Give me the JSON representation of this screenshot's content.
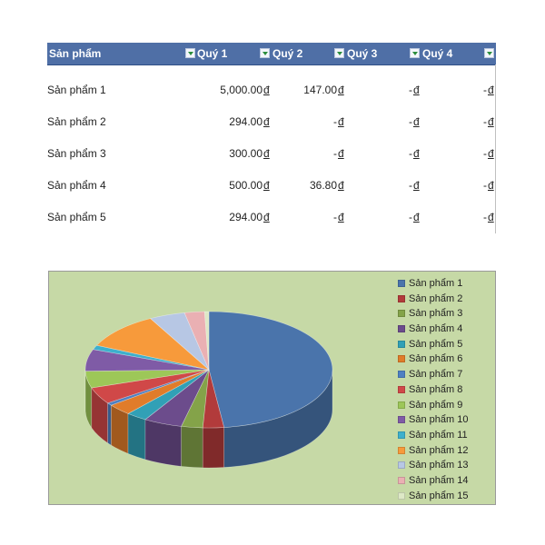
{
  "table": {
    "headers": [
      "Sản phẩm",
      "Quý 1",
      "Quý 2",
      "Quý 3",
      "Quý 4"
    ],
    "currency_symbol": "đ",
    "rows": [
      {
        "name": "Sản phẩm 1",
        "q1": "5,000.00",
        "q2": "147.00",
        "q3": "-",
        "q4": "-"
      },
      {
        "name": "Sản phẩm 2",
        "q1": "294.00",
        "q2": "-",
        "q3": "-",
        "q4": "-"
      },
      {
        "name": "Sản phẩm 3",
        "q1": "300.00",
        "q2": "-",
        "q3": "-",
        "q4": "-"
      },
      {
        "name": "Sản phẩm 4",
        "q1": "500.00",
        "q2": "36.80",
        "q3": "-",
        "q4": "-"
      },
      {
        "name": "Sản phẩm 5",
        "q1": "294.00",
        "q2": "-",
        "q3": "-",
        "q4": "-"
      }
    ],
    "colors": {
      "header_bg": "#4f6fa6",
      "header_text": "#ffffff",
      "filter_arrow": "#2a8d3c"
    }
  },
  "chart_data": {
    "type": "pie",
    "style": "3d",
    "background": "#c6d9a6",
    "legend_position": "right",
    "slices": [
      {
        "label": "Sản phẩm 1",
        "value": 5147,
        "color": "#4a74ab"
      },
      {
        "label": "Sản phẩm 2",
        "value": 294,
        "color": "#b23b3b"
      },
      {
        "label": "Sản phẩm 3",
        "value": 300,
        "color": "#84a349"
      },
      {
        "label": "Sản phẩm 4",
        "value": 537,
        "color": "#6c4c8c"
      },
      {
        "label": "Sản phẩm 5",
        "value": 294,
        "color": "#31a0b6"
      },
      {
        "label": "Sản phẩm 6",
        "value": 340,
        "color": "#e07c2a"
      },
      {
        "label": "Sản phẩm 7",
        "value": 80,
        "color": "#4e80c2"
      },
      {
        "label": "Sản phẩm 8",
        "value": 500,
        "color": "#d04848"
      },
      {
        "label": "Sản phẩm 9",
        "value": 500,
        "color": "#9dc758"
      },
      {
        "label": "Sản phẩm 10",
        "value": 650,
        "color": "#7f5ba6"
      },
      {
        "label": "Sản phẩm 11",
        "value": 130,
        "color": "#3eb0cc"
      },
      {
        "label": "Sản phẩm 12",
        "value": 1100,
        "color": "#f79a3b"
      },
      {
        "label": "Sản phẩm 13",
        "value": 500,
        "color": "#b7c7e4"
      },
      {
        "label": "Sản phẩm 14",
        "value": 280,
        "color": "#eab0b3"
      },
      {
        "label": "Sản phẩm 15",
        "value": 60,
        "color": "#dde8c6"
      }
    ]
  }
}
